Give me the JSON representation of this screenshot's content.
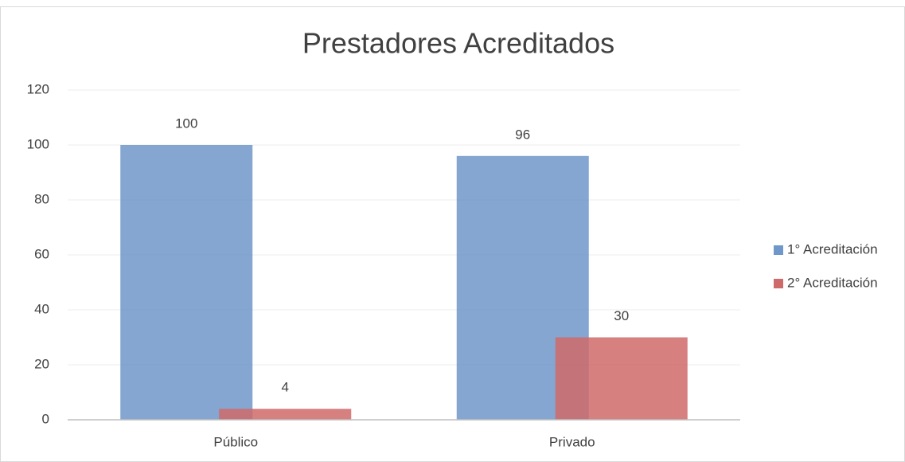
{
  "chart_data": {
    "type": "bar",
    "title": "Prestadores Acreditados",
    "categories": [
      "Público",
      "Privado"
    ],
    "series": [
      {
        "name": "1° Acreditación",
        "color": "#6f97c9",
        "values": [
          100,
          96
        ]
      },
      {
        "name": "2° Acreditación",
        "color": "#cf6a6a",
        "values": [
          4,
          30
        ]
      }
    ],
    "ylim": [
      0,
      120
    ],
    "yticks": [
      0,
      20,
      40,
      60,
      80,
      100,
      120
    ],
    "grid": true,
    "legend": "right"
  }
}
